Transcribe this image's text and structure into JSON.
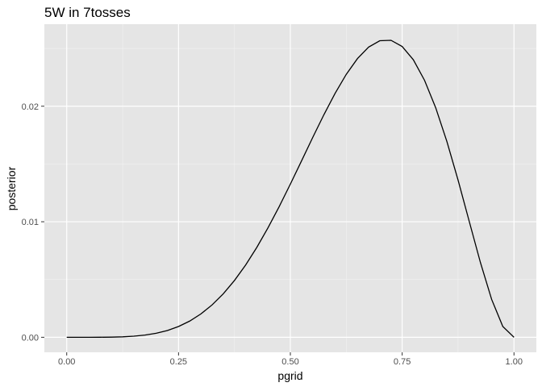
{
  "chart_data": {
    "type": "line",
    "title": "5W in 7tosses",
    "x_label": "pgrid",
    "y_label": "posterior",
    "x": [
      0,
      0.025,
      0.05,
      0.075,
      0.1,
      0.125,
      0.15,
      0.175,
      0.2,
      0.225,
      0.25,
      0.275,
      0.3,
      0.325,
      0.35,
      0.375,
      0.4,
      0.425,
      0.45,
      0.475,
      0.5,
      0.525,
      0.55,
      0.575,
      0.6,
      0.625,
      0.65,
      0.675,
      0.7,
      0.725,
      0.75,
      0.775,
      0.8,
      0.825,
      0.85,
      0.875,
      0.9,
      0.925,
      0.95,
      0.975,
      1
    ],
    "series": [
      {
        "color": "#000000",
        "values": [
          0,
          2e-08,
          4.8e-07,
          3.4e-06,
          1.37e-05,
          3.97e-05,
          9.31e-05,
          0.0001896,
          0.0003475,
          0.0005878,
          0.000932,
          0.001403,
          0.002021,
          0.002803,
          0.003766,
          0.004916,
          0.006256,
          0.00778,
          0.009473,
          0.01131,
          0.013258,
          0.01527,
          0.017294,
          0.019266,
          0.021113,
          0.022758,
          0.02412,
          0.025117,
          0.025669,
          0.025706,
          0.02517,
          0.024019,
          0.022243,
          0.019862,
          0.016941,
          0.0136,
          0.010021,
          0.006464,
          0.003283,
          0.0009345,
          0
        ]
      }
    ],
    "xlim": [
      -0.05,
      1.05
    ],
    "ylim": [
      -0.0013,
      0.0271
    ],
    "xticks": [
      {
        "value": 0,
        "label": "0.00"
      },
      0.25,
      {
        "value": 0.5,
        "label": "0.50"
      },
      0.75,
      {
        "value": 1,
        "label": "1.00"
      }
    ],
    "yticks": [
      {
        "value": 0,
        "label": "0.00"
      },
      0.01,
      0.02
    ],
    "x_minor_grid": [
      0.125,
      0.375,
      0.625,
      0.875
    ],
    "y_minor_grid": [
      0.005,
      0.015,
      0.025
    ],
    "grid": true
  }
}
